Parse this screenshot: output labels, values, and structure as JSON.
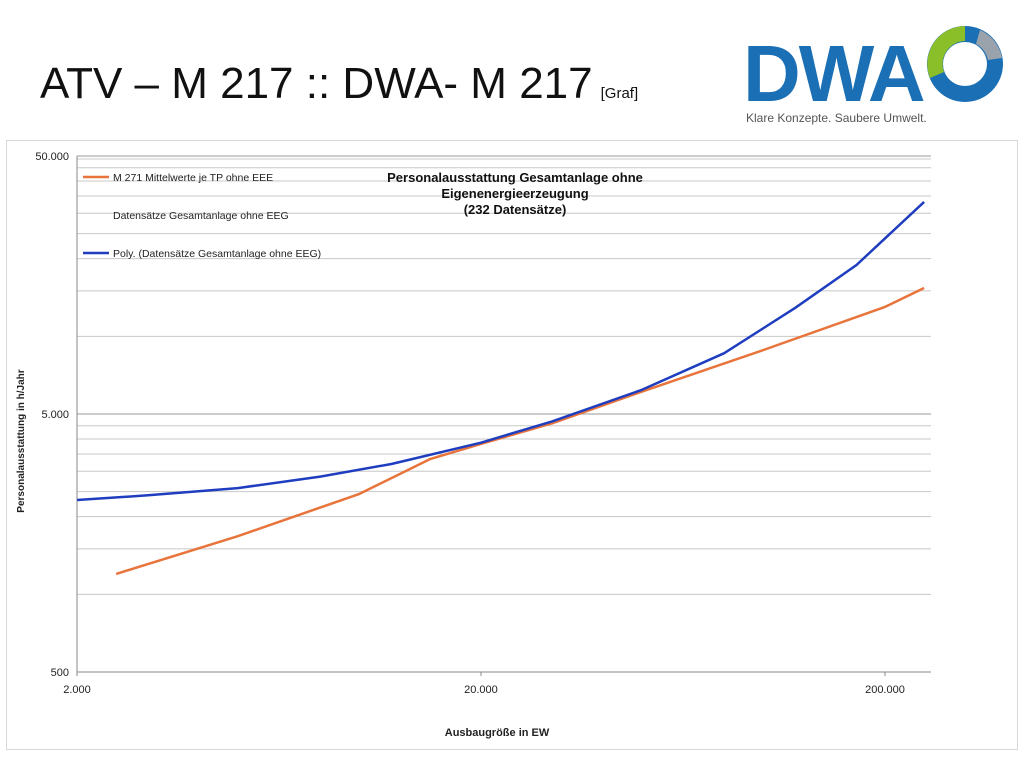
{
  "title": {
    "main": "ATV – M 217 :: DWA- M 217",
    "suffix": "[Graf]"
  },
  "logo": {
    "wordmark": "DWA",
    "tagline": "Klare Konzepte. Saubere Umwelt.",
    "colors": {
      "blue": "#1a6fb5",
      "green": "#8bbf2a",
      "grey": "#9aa3ab"
    }
  },
  "chart_data": {
    "type": "line",
    "title_lines": [
      "Personalausstattung Gesamtanlage ohne",
      "Eigenenergieerzeugung",
      "(232 Datensätze)"
    ],
    "xlabel": "Ausbaugröße in EW",
    "ylabel": "Personalausstattung in h/Jahr",
    "xscale": "log",
    "yscale": "log",
    "xlim": [
      2000,
      260000
    ],
    "ylim": [
      500,
      50000
    ],
    "x_ticks": [
      2000,
      20000,
      200000
    ],
    "x_tick_labels": [
      "2.000",
      "20.000",
      "200.000"
    ],
    "y_ticks": [
      500,
      5000,
      50000
    ],
    "y_tick_labels": [
      "500",
      "5.000",
      "50.000"
    ],
    "grid": "horizontal",
    "legend_position": "top-left",
    "series": [
      {
        "name": "M 271 Mittelwerte je TP ohne EEE",
        "style": "line",
        "color": "#e8743b",
        "x": [
          2500,
          5000,
          10000,
          15000,
          20000,
          30000,
          50000,
          100000,
          200000,
          250000
        ],
        "y": [
          1200,
          1680,
          2450,
          3350,
          3830,
          4600,
          6100,
          8850,
          13000,
          15400
        ]
      },
      {
        "name": "Datensätze Gesamtanlage ohne EEG",
        "style": "marker",
        "color": "#a5a5a5",
        "x": [],
        "y": []
      },
      {
        "name": "Poly. (Datensätze Gesamtanlage ohne EEG)",
        "style": "line",
        "color": "#1f3ebf",
        "x": [
          2000,
          3000,
          5000,
          8000,
          12000,
          20000,
          30000,
          50000,
          80000,
          120000,
          170000,
          250000
        ],
        "y": [
          2320,
          2420,
          2580,
          2860,
          3200,
          3870,
          4680,
          6200,
          8600,
          12900,
          18900,
          33200
        ]
      }
    ]
  }
}
